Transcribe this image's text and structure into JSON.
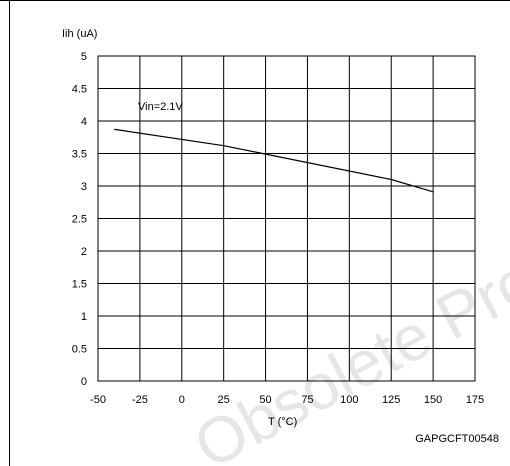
{
  "chart_data": {
    "type": "line",
    "ylabel": "Iih (uA)",
    "xlabel": "T (°C)",
    "xlim": [
      -50,
      175
    ],
    "ylim": [
      0,
      5
    ],
    "x_ticks": [
      -50,
      -25,
      0,
      25,
      50,
      75,
      100,
      125,
      150,
      175
    ],
    "y_ticks": [
      0,
      0.5,
      1,
      1.5,
      2,
      2.5,
      3,
      3.5,
      4,
      4.5,
      5
    ],
    "grid": true,
    "series": [
      {
        "name": "Vin=2.1V",
        "x": [
          -40,
          25,
          50,
          125,
          150
        ],
        "y": [
          3.87,
          3.62,
          3.49,
          3.1,
          2.91
        ]
      }
    ],
    "figure_code": "GAPGCFT00548",
    "watermark": "Obsolete Product(s)"
  }
}
